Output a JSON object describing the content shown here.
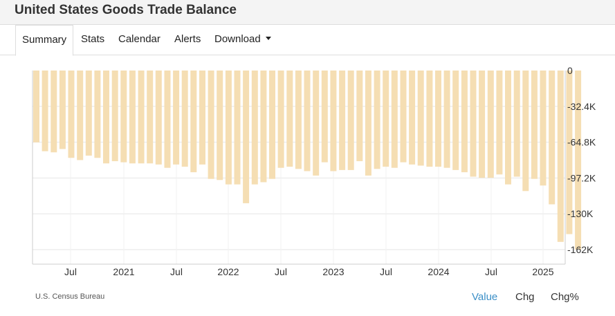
{
  "title": "United States Goods Trade Balance",
  "tabs": [
    {
      "label": "Summary",
      "active": true
    },
    {
      "label": "Stats"
    },
    {
      "label": "Calendar"
    },
    {
      "label": "Alerts"
    },
    {
      "label": "Download",
      "dropdown": true
    }
  ],
  "source": "U.S. Census Bureau",
  "toggles": [
    {
      "label": "Value",
      "active": true
    },
    {
      "label": "Chg"
    },
    {
      "label": "Chg%"
    }
  ],
  "colors": {
    "bar": "#f5deb3",
    "grid": "#e6e6e6",
    "active_toggle": "#3b8fc7"
  },
  "chart_data": {
    "type": "bar",
    "series": [
      {
        "values": [
          -65,
          -73,
          -74,
          -71,
          -79,
          -81,
          -77,
          -79,
          -84,
          -82,
          -83,
          -84,
          -84,
          -84,
          -85,
          -88,
          -85,
          -87,
          -92,
          -85,
          -98,
          -99,
          -103,
          -103,
          -120,
          -103,
          -101,
          -98,
          -88,
          -87,
          -89,
          -91,
          -95,
          -83,
          -91,
          -90,
          -90,
          -82,
          -95,
          -89,
          -87,
          -88,
          -83,
          -85,
          -86,
          -87,
          -87,
          -88,
          -90,
          -92,
          -96,
          -97,
          -97,
          -94,
          -103,
          -96,
          -109,
          -98,
          -104,
          -121,
          -155,
          -148,
          -162
        ]
      }
    ],
    "x_ticks": [
      "Jul",
      "2021",
      "Jul",
      "2022",
      "Jul",
      "2023",
      "Jul",
      "2024",
      "Jul",
      "2025"
    ],
    "y_ticks": [
      "0",
      "-32.4K",
      "-64.8K",
      "-97.2K",
      "-130K",
      "-162K"
    ],
    "ylim": [
      -162,
      0
    ],
    "grid": true,
    "y_axis_side": "right"
  }
}
